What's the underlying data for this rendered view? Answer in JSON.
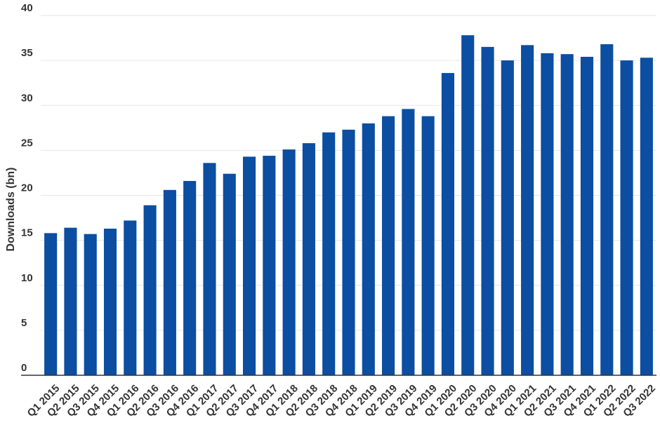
{
  "chart_data": {
    "type": "bar",
    "title": "",
    "xlabel": "",
    "ylabel": "Downloads (bn)",
    "ylim": [
      0,
      40
    ],
    "yticks": [
      0,
      5,
      10,
      15,
      20,
      25,
      30,
      35,
      40
    ],
    "grid": true,
    "legend": "none",
    "bar_color": "#0b4ea2",
    "categories": [
      "Q1 2015",
      "Q2 2015",
      "Q3 2015",
      "Q4 2015",
      "Q1 2016",
      "Q2 2016",
      "Q3 2016",
      "Q4 2016",
      "Q1 2017",
      "Q2 2017",
      "Q3 2017",
      "Q4 2017",
      "Q1 2018",
      "Q2 2018",
      "Q3 2018",
      "Q4 2018",
      "Q1 2019",
      "Q2 2019",
      "Q3 2019",
      "Q4 2019",
      "Q1 2020",
      "Q2 2020",
      "Q3 2020",
      "Q4 2020",
      "Q1 2021",
      "Q2 2021",
      "Q3 2021",
      "Q4 2021",
      "Q1 2022",
      "Q2 2022",
      "Q3 2022"
    ],
    "values": [
      15.8,
      16.4,
      15.7,
      16.3,
      17.2,
      18.9,
      20.6,
      21.6,
      23.6,
      22.4,
      24.3,
      24.4,
      25.1,
      25.8,
      27.0,
      27.3,
      28.0,
      28.8,
      29.6,
      28.8,
      33.6,
      37.8,
      36.5,
      35.0,
      36.7,
      35.8,
      35.7,
      35.4,
      36.8,
      35.0,
      35.3
    ]
  }
}
